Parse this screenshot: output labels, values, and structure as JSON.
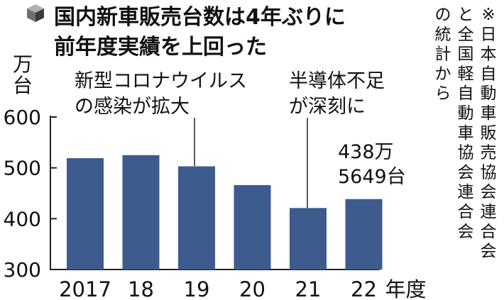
{
  "header": {
    "title_line1": "国内新車販売台数は4年ぶりに",
    "title_line2": "前年度実績を上回った"
  },
  "source_note": {
    "columns": [
      "※日本自動車販売協会連合会",
      "と全国軽自動車協会連合会",
      "の統計から"
    ]
  },
  "annotations": {
    "covid_line1": "新型コロナウイルス",
    "covid_line2": "の感染が拡大",
    "chip_line1": "半導体不足",
    "chip_line2": "が深刻に",
    "value_line1": "438万",
    "value_line2": "5649台"
  },
  "colors": {
    "bar": "#3d5b8c",
    "axis": "#222222",
    "text": "#111111"
  },
  "chart_data": {
    "type": "bar",
    "categories": [
      "2017",
      "18",
      "19",
      "20",
      "21",
      "22"
    ],
    "values": [
      519,
      525,
      503,
      466,
      421,
      438.5649
    ],
    "unit_label": "万台",
    "xlabel_suffix": "年度",
    "ylim": [
      300,
      600
    ],
    "yticks": [
      300,
      400,
      500,
      600
    ],
    "grid": false,
    "legend": "none"
  }
}
